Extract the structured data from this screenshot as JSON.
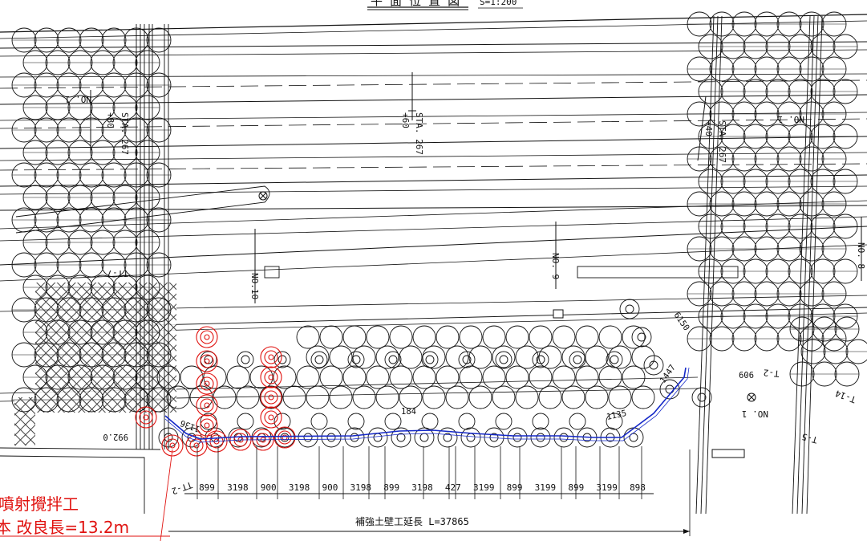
{
  "title": {
    "text": "平 面 位 置 図",
    "scale": "S=1:200"
  },
  "stations": [
    {
      "sta": "STA. 267",
      "plus": "+60"
    },
    {
      "sta": "STA. 267",
      "plus": "+40"
    },
    {
      "sta": "STA. 267",
      "plus": "+80"
    }
  ],
  "number_labels": [
    "NO.10",
    "NO. 9",
    "NO. 8",
    "NO. 1",
    "NO. 1",
    "NO. 1"
  ],
  "pile_labels": [
    "TT-2",
    "TT-7",
    "T-14",
    "T-5",
    "T-2"
  ],
  "small_dims": [
    "992.0",
    "1136",
    "184",
    "1135",
    "6150",
    "1447",
    "909"
  ],
  "dims": [
    "899",
    "3198",
    "900",
    "3198",
    "900",
    "3198",
    "899",
    "3198",
    "427",
    "3199",
    "899",
    "3199",
    "899",
    "3199",
    "898"
  ],
  "total_label": "補強土壁工延長 L=37865",
  "red_note": {
    "line1": "噴射攪拌工",
    "line2": "本  改良長=13.2m"
  },
  "colors": {
    "line": "#111111",
    "red": "#e0120f",
    "blue": "#1428c8"
  }
}
